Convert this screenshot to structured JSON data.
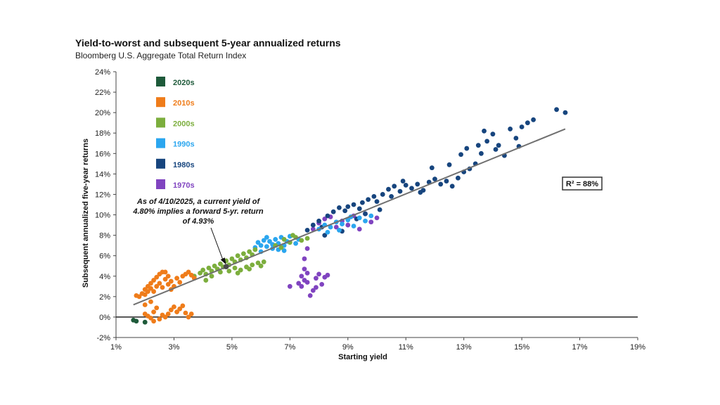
{
  "chart_data": {
    "type": "scatter",
    "title": "Yield-to-worst and subsequent 5-year annualized returns",
    "subtitle": "Bloomberg U.S. Aggregate Total Return Index",
    "xlabel": "Starting yield",
    "ylabel": "Subsequent annualized five-year returns",
    "xlim": [
      1,
      19
    ],
    "ylim": [
      -2,
      24
    ],
    "x_ticks": [
      1,
      3,
      5,
      7,
      9,
      11,
      13,
      15,
      17,
      19
    ],
    "y_ticks": [
      -2,
      0,
      2,
      4,
      6,
      8,
      10,
      12,
      14,
      16,
      18,
      20,
      22,
      24
    ],
    "x_tick_labels": [
      "1%",
      "3%",
      "5%",
      "7%",
      "9%",
      "11%",
      "13%",
      "15%",
      "17%",
      "19%"
    ],
    "y_tick_labels": [
      "-2%",
      "0%",
      "2%",
      "4%",
      "6%",
      "8%",
      "10%",
      "12%",
      "14%",
      "16%",
      "18%",
      "20%",
      "22%",
      "24%"
    ],
    "grid": false,
    "legend_position": "top-left",
    "annotation": "As of 4/10/2025, a current yield of 4.80% implies a forward 5-yr. return of 4.93%",
    "annotation_lines": [
      "As of 4/10/2025, a current yield of",
      "4.80% implies a forward 5-yr. return",
      "of 4.93%"
    ],
    "annotation_point": [
      4.8,
      4.93
    ],
    "r_squared": "R² = 88%",
    "trendline": [
      [
        1.6,
        1.2
      ],
      [
        16.5,
        18.4
      ]
    ],
    "series": [
      {
        "name": "2020s",
        "color": "#1e5a3a",
        "points": [
          [
            1.6,
            -0.3
          ],
          [
            1.7,
            -0.4
          ],
          [
            2.0,
            -0.5
          ]
        ]
      },
      {
        "name": "2010s",
        "color": "#ef7c1a",
        "points": [
          [
            1.7,
            2.1
          ],
          [
            1.8,
            2.0
          ],
          [
            1.9,
            2.3
          ],
          [
            2.0,
            2.7
          ],
          [
            2.0,
            2.2
          ],
          [
            2.1,
            3.0
          ],
          [
            2.1,
            2.5
          ],
          [
            2.2,
            3.3
          ],
          [
            2.2,
            2.8
          ],
          [
            2.3,
            3.6
          ],
          [
            2.3,
            2.5
          ],
          [
            2.4,
            3.9
          ],
          [
            2.4,
            3.0
          ],
          [
            2.5,
            4.2
          ],
          [
            2.5,
            3.3
          ],
          [
            2.6,
            4.4
          ],
          [
            2.6,
            2.9
          ],
          [
            2.7,
            3.7
          ],
          [
            2.7,
            4.4
          ],
          [
            2.8,
            3.2
          ],
          [
            2.8,
            4.0
          ],
          [
            2.9,
            2.7
          ],
          [
            2.9,
            3.5
          ],
          [
            3.0,
            3.0
          ],
          [
            3.1,
            3.8
          ],
          [
            3.2,
            3.4
          ],
          [
            3.3,
            4.0
          ],
          [
            3.4,
            4.2
          ],
          [
            3.5,
            4.4
          ],
          [
            3.6,
            4.1
          ],
          [
            3.7,
            3.8
          ],
          [
            2.0,
            0.3
          ],
          [
            2.1,
            0.1
          ],
          [
            2.2,
            -0.1
          ],
          [
            2.3,
            0.5
          ],
          [
            2.4,
            0.9
          ],
          [
            2.5,
            -0.2
          ],
          [
            2.6,
            0.2
          ],
          [
            2.7,
            0.0
          ],
          [
            2.8,
            0.3
          ],
          [
            2.9,
            0.7
          ],
          [
            3.0,
            1.0
          ],
          [
            3.1,
            0.5
          ],
          [
            3.2,
            0.8
          ],
          [
            3.3,
            1.1
          ],
          [
            3.4,
            0.4
          ],
          [
            3.5,
            0.0
          ],
          [
            3.6,
            0.3
          ],
          [
            2.3,
            -0.4
          ],
          [
            2.2,
            1.5
          ],
          [
            2.0,
            1.2
          ]
        ]
      },
      {
        "name": "2000s",
        "color": "#7cae3d",
        "points": [
          [
            3.7,
            4.0
          ],
          [
            3.9,
            4.3
          ],
          [
            4.0,
            4.6
          ],
          [
            4.1,
            4.2
          ],
          [
            4.2,
            4.8
          ],
          [
            4.3,
            4.5
          ],
          [
            4.4,
            5.0
          ],
          [
            4.5,
            4.7
          ],
          [
            4.6,
            5.2
          ],
          [
            4.7,
            4.9
          ],
          [
            4.8,
            5.5
          ],
          [
            4.9,
            5.1
          ],
          [
            5.0,
            5.7
          ],
          [
            5.1,
            5.4
          ],
          [
            5.2,
            6.0
          ],
          [
            5.3,
            5.6
          ],
          [
            5.4,
            6.2
          ],
          [
            5.5,
            5.8
          ],
          [
            5.6,
            6.4
          ],
          [
            5.7,
            6.1
          ],
          [
            5.8,
            6.6
          ],
          [
            4.1,
            3.6
          ],
          [
            4.3,
            4.0
          ],
          [
            4.6,
            4.4
          ],
          [
            4.9,
            4.5
          ],
          [
            5.1,
            4.8
          ],
          [
            5.3,
            4.6
          ],
          [
            5.5,
            4.9
          ],
          [
            5.7,
            5.1
          ],
          [
            5.9,
            5.3
          ],
          [
            6.0,
            5.0
          ],
          [
            6.1,
            5.4
          ],
          [
            5.6,
            4.7
          ],
          [
            5.2,
            4.3
          ],
          [
            6.8,
            7.6
          ],
          [
            7.0,
            7.3
          ],
          [
            7.2,
            7.8
          ],
          [
            7.4,
            7.5
          ],
          [
            6.5,
            7.0
          ],
          [
            6.7,
            6.8
          ],
          [
            7.1,
            8.0
          ],
          [
            7.6,
            7.7
          ]
        ]
      },
      {
        "name": "1990s",
        "color": "#2ba6ef",
        "points": [
          [
            5.8,
            6.8
          ],
          [
            5.9,
            7.3
          ],
          [
            6.0,
            7.0
          ],
          [
            6.1,
            7.5
          ],
          [
            6.2,
            6.9
          ],
          [
            6.3,
            7.4
          ],
          [
            6.4,
            7.1
          ],
          [
            6.5,
            7.6
          ],
          [
            6.6,
            7.2
          ],
          [
            6.7,
            7.8
          ],
          [
            6.8,
            7.0
          ],
          [
            6.9,
            7.4
          ],
          [
            7.0,
            7.9
          ],
          [
            6.2,
            7.8
          ],
          [
            6.4,
            6.7
          ],
          [
            6.6,
            6.6
          ],
          [
            6.8,
            6.5
          ],
          [
            7.2,
            7.2
          ],
          [
            7.3,
            7.6
          ],
          [
            6.0,
            6.4
          ],
          [
            8.0,
            8.6
          ],
          [
            8.2,
            9.0
          ],
          [
            8.4,
            8.8
          ],
          [
            8.6,
            9.3
          ],
          [
            8.8,
            9.1
          ],
          [
            9.0,
            9.5
          ],
          [
            9.2,
            8.9
          ],
          [
            9.4,
            9.7
          ],
          [
            9.6,
            9.4
          ],
          [
            9.8,
            9.9
          ],
          [
            8.3,
            8.3
          ],
          [
            8.7,
            8.5
          ],
          [
            9.1,
            9.8
          ]
        ]
      },
      {
        "name": "1980s",
        "color": "#17457e",
        "points": [
          [
            7.6,
            8.5
          ],
          [
            7.8,
            9.0
          ],
          [
            8.0,
            9.4
          ],
          [
            8.1,
            8.8
          ],
          [
            8.3,
            9.9
          ],
          [
            8.5,
            10.3
          ],
          [
            8.7,
            10.7
          ],
          [
            8.9,
            10.4
          ],
          [
            9.0,
            10.8
          ],
          [
            9.2,
            11.0
          ],
          [
            9.4,
            10.6
          ],
          [
            9.5,
            11.2
          ],
          [
            9.7,
            11.5
          ],
          [
            9.9,
            11.8
          ],
          [
            10.0,
            11.3
          ],
          [
            10.2,
            12.0
          ],
          [
            10.4,
            12.5
          ],
          [
            10.6,
            12.8
          ],
          [
            10.8,
            12.3
          ],
          [
            11.0,
            12.9
          ],
          [
            11.2,
            12.6
          ],
          [
            11.4,
            13.0
          ],
          [
            11.6,
            12.4
          ],
          [
            11.8,
            13.2
          ],
          [
            12.0,
            13.5
          ],
          [
            12.2,
            13.0
          ],
          [
            12.4,
            13.3
          ],
          [
            12.6,
            12.8
          ],
          [
            12.8,
            13.6
          ],
          [
            13.0,
            14.2
          ],
          [
            13.2,
            14.5
          ],
          [
            13.4,
            15.0
          ],
          [
            13.5,
            16.8
          ],
          [
            13.6,
            16.0
          ],
          [
            13.8,
            17.2
          ],
          [
            14.0,
            17.9
          ],
          [
            14.2,
            16.8
          ],
          [
            14.4,
            15.8
          ],
          [
            14.6,
            18.4
          ],
          [
            14.8,
            17.5
          ],
          [
            15.0,
            18.6
          ],
          [
            15.2,
            19.0
          ],
          [
            15.4,
            19.3
          ],
          [
            16.2,
            20.3
          ],
          [
            16.5,
            20.0
          ],
          [
            13.1,
            16.5
          ],
          [
            12.9,
            15.9
          ],
          [
            13.7,
            18.2
          ],
          [
            14.1,
            16.4
          ],
          [
            14.9,
            16.7
          ],
          [
            10.5,
            11.8
          ],
          [
            10.1,
            10.5
          ],
          [
            9.6,
            10.1
          ],
          [
            9.3,
            9.6
          ],
          [
            11.9,
            14.6
          ],
          [
            12.5,
            14.9
          ],
          [
            11.5,
            12.2
          ],
          [
            10.9,
            13.3
          ],
          [
            8.8,
            8.4
          ],
          [
            8.2,
            8.0
          ]
        ]
      },
      {
        "name": "1970s",
        "color": "#8044c0",
        "points": [
          [
            7.0,
            3.0
          ],
          [
            7.3,
            3.3
          ],
          [
            7.4,
            4.0
          ],
          [
            7.5,
            3.6
          ],
          [
            7.6,
            4.3
          ],
          [
            7.7,
            2.1
          ],
          [
            7.8,
            2.6
          ],
          [
            7.9,
            3.8
          ],
          [
            8.0,
            4.2
          ],
          [
            8.1,
            3.2
          ],
          [
            8.2,
            3.9
          ],
          [
            7.5,
            5.7
          ],
          [
            7.6,
            6.7
          ],
          [
            7.8,
            8.6
          ],
          [
            8.0,
            9.2
          ],
          [
            8.2,
            9.6
          ],
          [
            8.4,
            9.8
          ],
          [
            8.6,
            8.8
          ],
          [
            8.8,
            9.4
          ],
          [
            9.0,
            9.0
          ],
          [
            9.2,
            9.9
          ],
          [
            9.4,
            8.6
          ],
          [
            9.6,
            10.1
          ],
          [
            9.8,
            9.3
          ],
          [
            10.0,
            9.7
          ],
          [
            7.5,
            4.7
          ],
          [
            7.4,
            3.0
          ],
          [
            7.6,
            3.4
          ],
          [
            8.3,
            4.1
          ],
          [
            7.9,
            2.9
          ]
        ]
      }
    ]
  }
}
